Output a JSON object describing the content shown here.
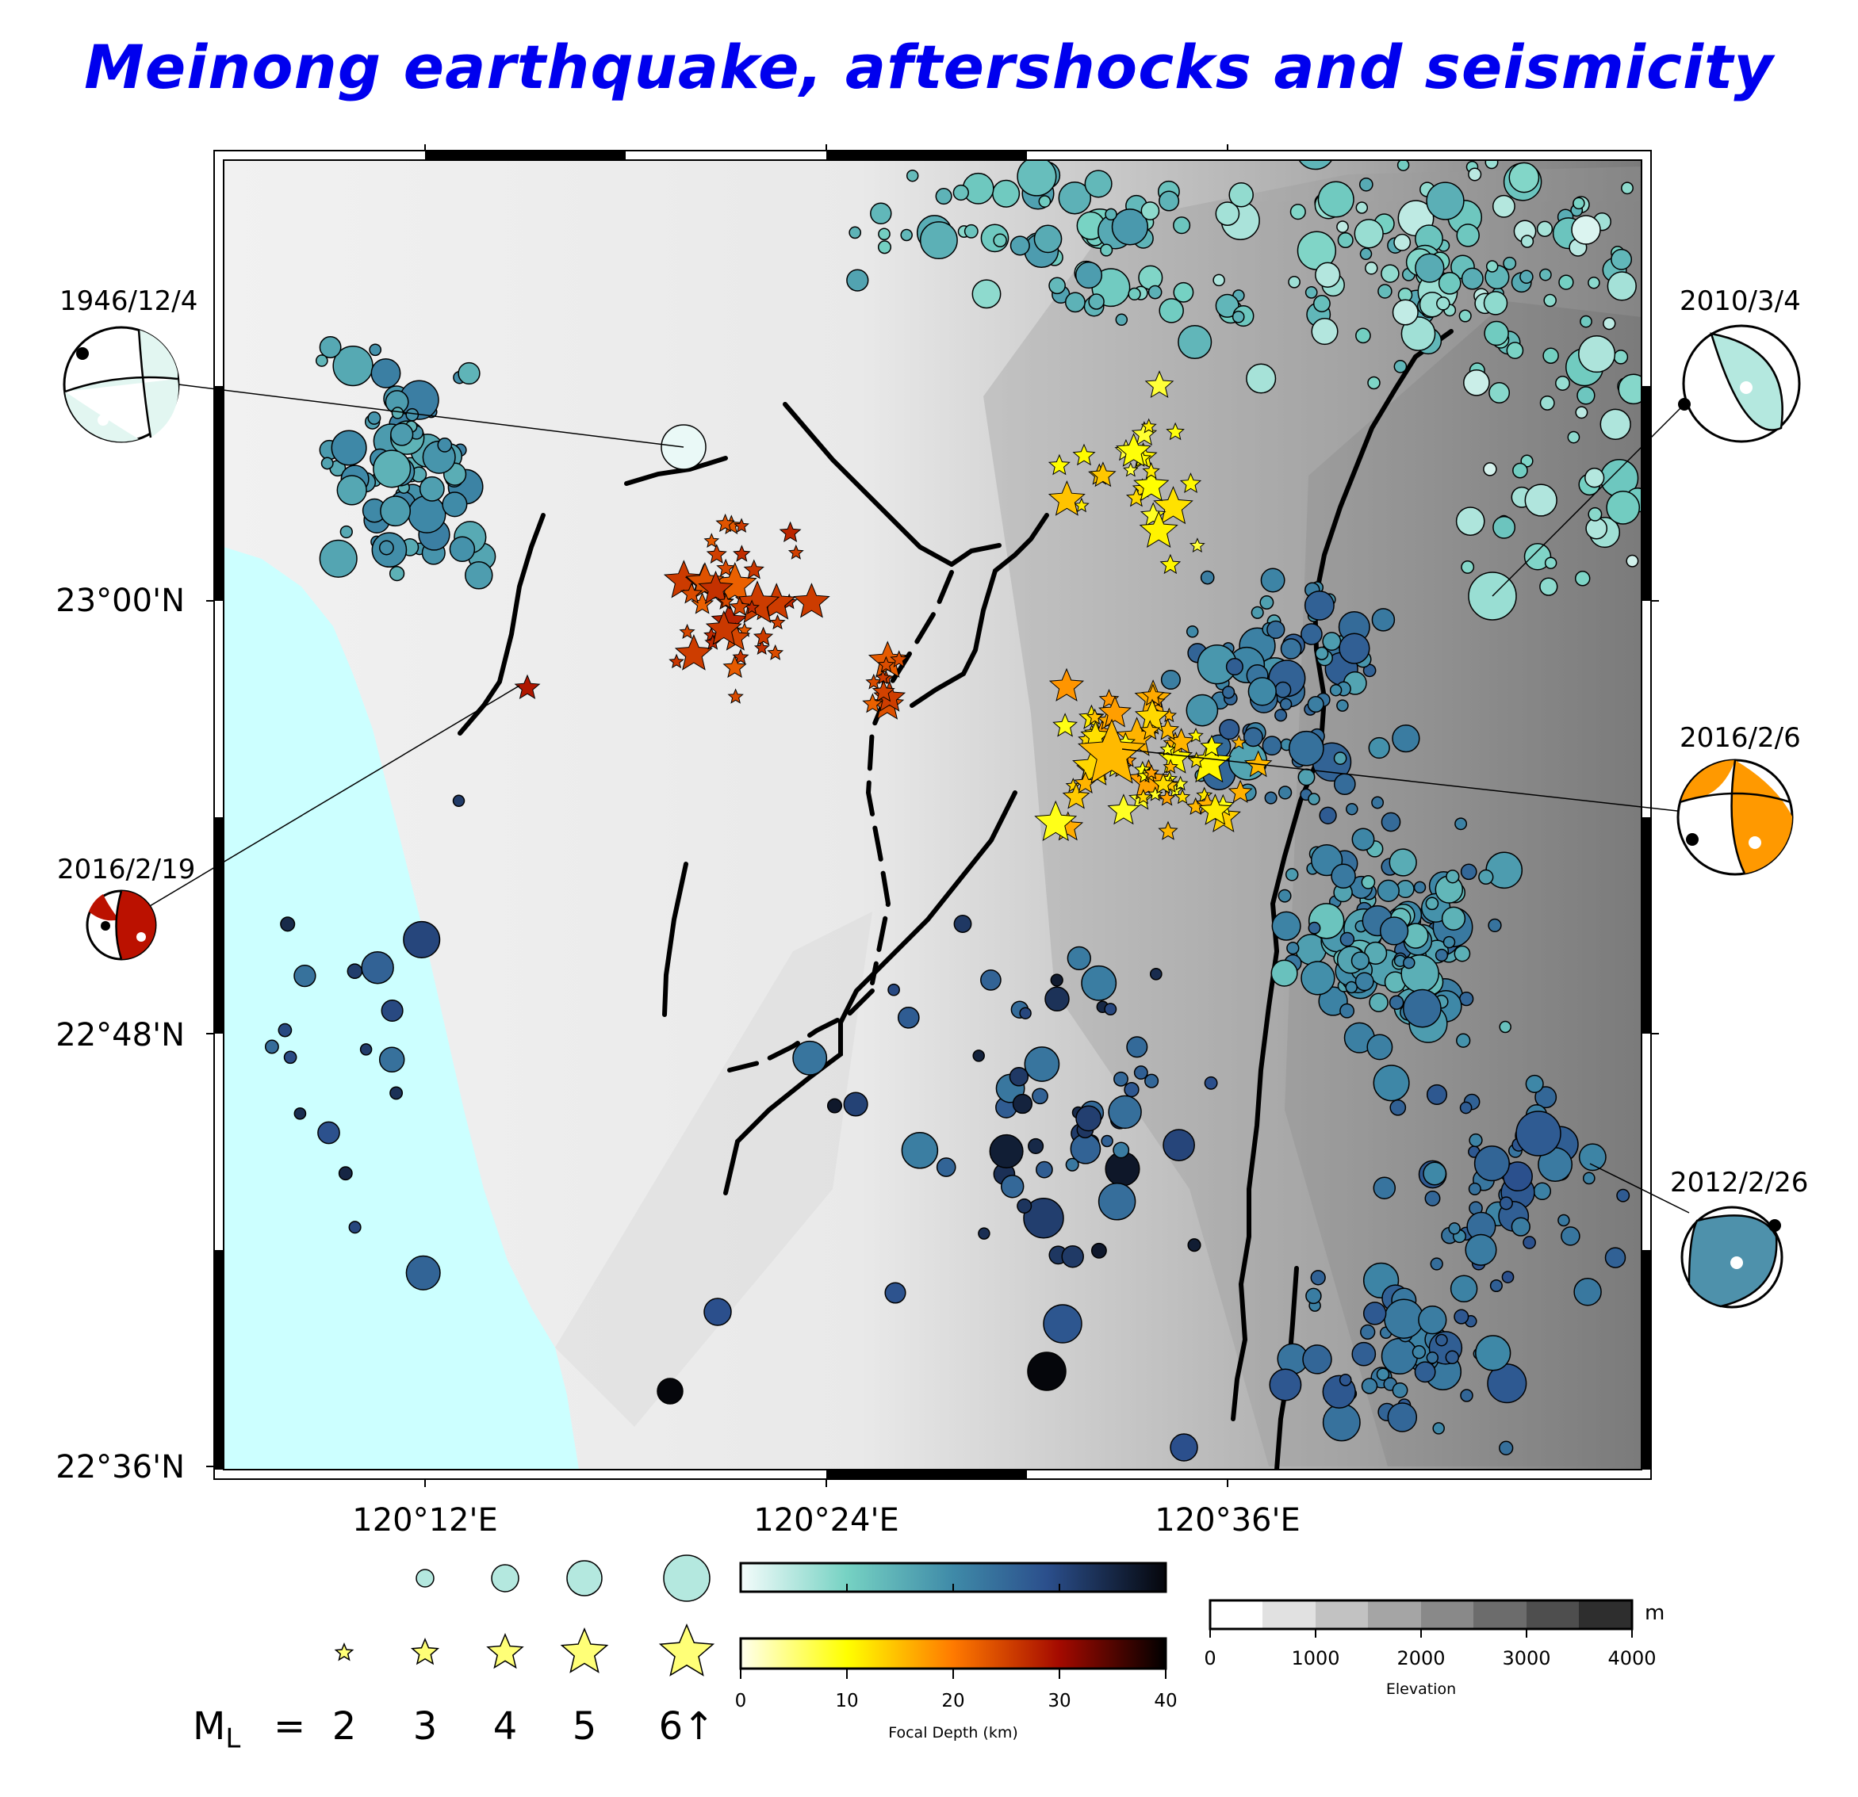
{
  "title": "Meinong earthquake, aftershocks and seismicity",
  "axes": {
    "lat_labels": [
      "23°00'N",
      "22°48'N",
      "22°36'N"
    ],
    "lon_labels": [
      "120°12'E",
      "120°24'E",
      "120°36'E"
    ]
  },
  "focal_mechanisms": [
    {
      "date": "1946/12/4",
      "color": "#e2f6f1"
    },
    {
      "date": "2010/3/4",
      "color": "#b4e8df"
    },
    {
      "date": "2016/2/6",
      "color": "#ff9900"
    },
    {
      "date": "2016/2/19",
      "color": "#bb1100"
    },
    {
      "date": "2012/2/26",
      "color": "#4e91ab"
    }
  ],
  "legend": {
    "magnitude_prefix": "M",
    "magnitude_subscript": "L",
    "equals": "=",
    "magnitudes": [
      "2",
      "3",
      "4",
      "5",
      "6↑"
    ],
    "depth_ticks": [
      "0",
      "10",
      "20",
      "30",
      "40"
    ],
    "depth_title": "Focal Depth (km)",
    "elevation_ticks": [
      "0",
      "1000",
      "2000",
      "3000",
      "4000"
    ],
    "elevation_unit": "m",
    "elevation_title": "Elevation"
  },
  "colors": {
    "title": "#0000ee",
    "sea": "#ccffff",
    "seismicity_shallow": "#e6f8f6",
    "seismicity_mid": "#5aa8b3",
    "seismicity_deep": "#0a0f1e",
    "aftershock_shallow": "#ffffcc",
    "aftershock_mid": "#ff7700",
    "aftershock_deep": "#1a0000"
  }
}
